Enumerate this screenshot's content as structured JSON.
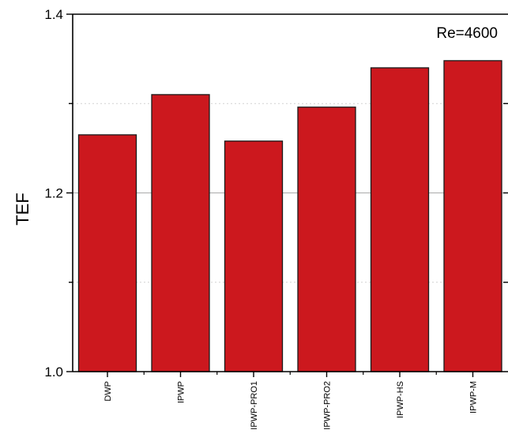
{
  "chart_data": {
    "type": "bar",
    "title": "",
    "xlabel": "",
    "ylabel": "TEF",
    "annotation": "Re=4600",
    "categories": [
      "DWP",
      "IPWP",
      "IPWP-PRO1",
      "IPWP-PRO2",
      "IPWP-HS",
      "IPWP-M"
    ],
    "values": [
      1.265,
      1.31,
      1.258,
      1.296,
      1.34,
      1.348
    ],
    "ylim": [
      1.0,
      1.4
    ],
    "yticks": [
      "1.0",
      "1.2",
      "1.4"
    ],
    "ytick_values": [
      1.0,
      1.2,
      1.4
    ],
    "gridlines": [
      1.1,
      1.2,
      1.3
    ],
    "grid": true,
    "bar_color": "#cc181e"
  }
}
